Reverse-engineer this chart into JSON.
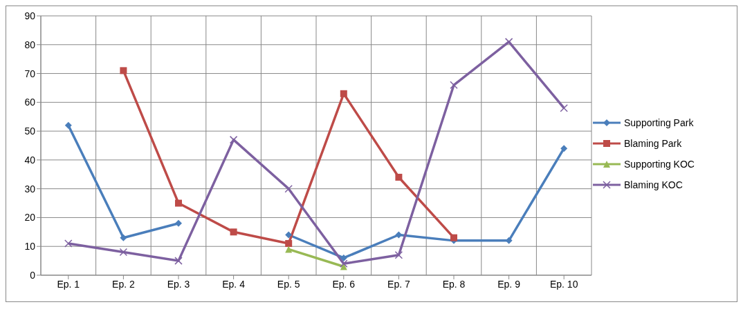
{
  "chart_data": {
    "type": "line",
    "categories": [
      "Ep. 1",
      "Ep. 2",
      "Ep. 3",
      "Ep. 4",
      "Ep. 5",
      "Ep. 6",
      "Ep. 7",
      "Ep. 8",
      "Ep. 9",
      "Ep. 10"
    ],
    "series": [
      {
        "name": "Supporting Park",
        "color": "#4a7ebb",
        "marker": "diamond",
        "values": [
          52,
          13,
          18,
          null,
          14,
          6,
          14,
          12,
          12,
          44
        ]
      },
      {
        "name": "Blaming Park",
        "color": "#be4b48",
        "marker": "square",
        "values": [
          null,
          71,
          25,
          15,
          11,
          63,
          34,
          13,
          null,
          null
        ]
      },
      {
        "name": "Supporting KOC",
        "color": "#98b954",
        "marker": "triangle",
        "values": [
          null,
          null,
          null,
          null,
          9,
          3,
          null,
          null,
          null,
          null
        ]
      },
      {
        "name": "Blaming KOC",
        "color": "#7d60a0",
        "marker": "cross",
        "values": [
          11,
          8,
          5,
          47,
          30,
          4,
          7,
          66,
          81,
          58
        ]
      }
    ],
    "ylim": [
      0,
      90
    ],
    "yticks": [
      0,
      10,
      20,
      30,
      40,
      50,
      60,
      70,
      80,
      90
    ],
    "grid": true,
    "legend": "right",
    "line_style": "solid"
  }
}
